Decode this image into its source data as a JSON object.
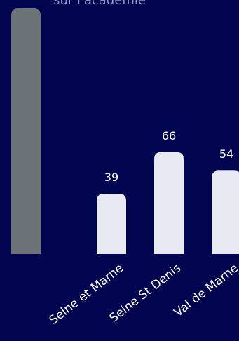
{
  "header": {
    "subtitle": "sur l'académie"
  },
  "colors": {
    "background": "#01044e",
    "highlight_bar": "#6b7376",
    "bar": "#e8eaf3",
    "value_label": "#ffffff",
    "category_label": "#ffffff",
    "subtitle": "#8c93c6"
  },
  "chart_data": {
    "type": "bar",
    "title": "",
    "xlabel": "",
    "ylabel": "",
    "categories": [
      "",
      "Seine et Marne",
      "Seine St Denis",
      "Val de Marne"
    ],
    "values": [
      null,
      39,
      66,
      54
    ],
    "value_labels": [
      "",
      "39",
      "66",
      "54"
    ],
    "highlighted_category_index": 0,
    "grid": false,
    "legend": "none"
  }
}
